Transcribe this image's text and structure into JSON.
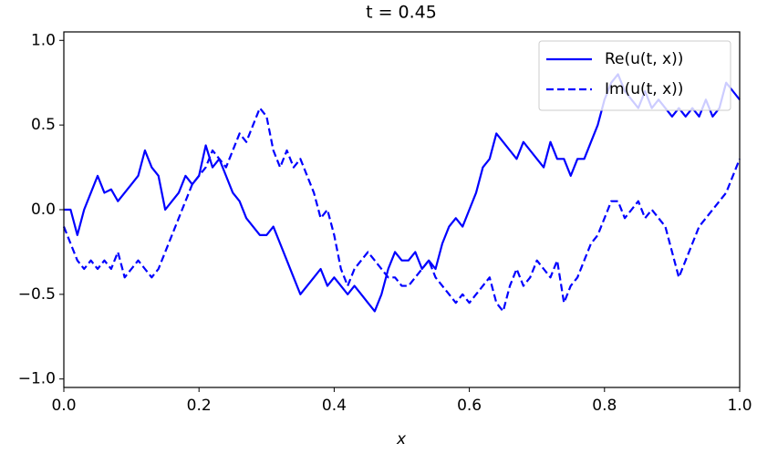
{
  "chart_data": {
    "type": "line",
    "title": "t = 0.45",
    "xlabel": "x",
    "x": [
      0,
      0.01,
      0.02,
      0.03,
      0.04,
      0.05,
      0.06,
      0.07,
      0.08,
      0.09,
      0.1,
      0.11,
      0.12,
      0.13,
      0.14,
      0.15,
      0.16,
      0.17,
      0.18,
      0.19,
      0.2,
      0.21,
      0.22,
      0.23,
      0.24,
      0.25,
      0.26,
      0.27,
      0.28,
      0.29,
      0.3,
      0.31,
      0.32,
      0.33,
      0.34,
      0.35,
      0.36,
      0.37,
      0.38,
      0.39,
      0.4,
      0.41,
      0.42,
      0.43,
      0.44,
      0.45,
      0.46,
      0.47,
      0.48,
      0.49,
      0.5,
      0.51,
      0.52,
      0.53,
      0.54,
      0.55,
      0.56,
      0.57,
      0.58,
      0.59,
      0.6,
      0.61,
      0.62,
      0.63,
      0.64,
      0.65,
      0.66,
      0.67,
      0.68,
      0.69,
      0.7,
      0.71,
      0.72,
      0.73,
      0.74,
      0.75,
      0.76,
      0.77,
      0.78,
      0.79,
      0.8,
      0.81,
      0.82,
      0.83,
      0.84,
      0.85,
      0.86,
      0.87,
      0.88,
      0.89,
      0.9,
      0.91,
      0.92,
      0.93,
      0.94,
      0.95,
      0.96,
      0.97,
      0.98,
      0.99,
      1
    ],
    "series": [
      {
        "name": "Re(u(t, x))",
        "color": "#0000ff",
        "linestyle": "solid",
        "values": [
          0,
          0,
          -0.15,
          0,
          0.1,
          0.2,
          0.1,
          0.12,
          0.05,
          0.1,
          0.15,
          0.2,
          0.35,
          0.25,
          0.2,
          0,
          0.05,
          0.1,
          0.2,
          0.15,
          0.2,
          0.38,
          0.25,
          0.3,
          0.2,
          0.1,
          0.05,
          -0.05,
          -0.1,
          -0.15,
          -0.15,
          -0.1,
          -0.2,
          -0.3,
          -0.4,
          -0.5,
          -0.45,
          -0.4,
          -0.35,
          -0.45,
          -0.4,
          -0.45,
          -0.5,
          -0.45,
          -0.5,
          -0.55,
          -0.6,
          -0.5,
          -0.35,
          -0.25,
          -0.3,
          -0.3,
          -0.25,
          -0.35,
          -0.3,
          -0.35,
          -0.2,
          -0.1,
          -0.05,
          -0.1,
          0,
          0.1,
          0.25,
          0.3,
          0.45,
          0.4,
          0.35,
          0.3,
          0.4,
          0.35,
          0.3,
          0.25,
          0.4,
          0.3,
          0.3,
          0.2,
          0.3,
          0.3,
          0.4,
          0.5,
          0.65,
          0.75,
          0.8,
          0.7,
          0.65,
          0.6,
          0.7,
          0.6,
          0.65,
          0.6,
          0.55,
          0.6,
          0.55,
          0.6,
          0.55,
          0.65,
          0.55,
          0.6,
          0.75,
          0.7,
          0.65
        ]
      },
      {
        "name": "Im(u(t, x))",
        "color": "#0000ff",
        "linestyle": "dashed",
        "values": [
          -0.1,
          -0.2,
          -0.3,
          -0.35,
          -0.3,
          -0.35,
          -0.3,
          -0.35,
          -0.25,
          -0.4,
          -0.35,
          -0.3,
          -0.35,
          -0.4,
          -0.35,
          -0.25,
          -0.15,
          -0.05,
          0.05,
          0.15,
          0.2,
          0.25,
          0.35,
          0.3,
          0.25,
          0.35,
          0.45,
          0.4,
          0.5,
          0.6,
          0.55,
          0.35,
          0.25,
          0.35,
          0.25,
          0.3,
          0.2,
          0.1,
          -0.05,
          0,
          -0.15,
          -0.35,
          -0.45,
          -0.35,
          -0.3,
          -0.25,
          -0.3,
          -0.35,
          -0.4,
          -0.4,
          -0.45,
          -0.45,
          -0.4,
          -0.35,
          -0.3,
          -0.4,
          -0.45,
          -0.5,
          -0.55,
          -0.5,
          -0.55,
          -0.5,
          -0.45,
          -0.4,
          -0.55,
          -0.6,
          -0.45,
          -0.35,
          -0.45,
          -0.4,
          -0.3,
          -0.35,
          -0.4,
          -0.3,
          -0.55,
          -0.45,
          -0.4,
          -0.3,
          -0.2,
          -0.15,
          -0.05,
          0.05,
          0.05,
          -0.05,
          0,
          0.05,
          -0.05,
          0,
          -0.05,
          -0.1,
          -0.25,
          -0.4,
          -0.3,
          -0.2,
          -0.1,
          -0.05,
          0,
          0.05,
          0.1,
          0.2,
          0.3
        ]
      }
    ],
    "xlim": [
      0,
      1
    ],
    "ylim": [
      -1.05,
      1.05
    ],
    "xticks": [
      {
        "value": 0,
        "label": "0.0"
      },
      {
        "value": 0.2,
        "label": "0.2"
      },
      {
        "value": 0.4,
        "label": "0.4"
      },
      {
        "value": 0.6,
        "label": "0.6"
      },
      {
        "value": 0.8,
        "label": "0.8"
      },
      {
        "value": 1,
        "label": "1.0"
      }
    ],
    "yticks": [
      {
        "value": -1,
        "label": "−1.0"
      },
      {
        "value": -0.5,
        "label": "−0.5"
      },
      {
        "value": 0,
        "label": "0.0"
      },
      {
        "value": 0.5,
        "label": "0.5"
      },
      {
        "value": 1,
        "label": "1.0"
      }
    ],
    "grid": false,
    "legend": "upper right"
  }
}
